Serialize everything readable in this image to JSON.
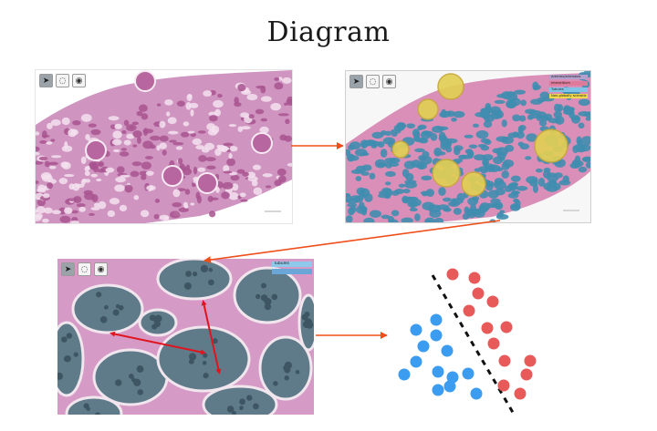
{
  "title": "Diagram",
  "panel_wsi": {
    "tools": [
      {
        "icon": "arrow-pointer-icon",
        "glyph": "➤"
      },
      {
        "icon": "lasso-icon",
        "glyph": "◌"
      },
      {
        "icon": "focus-icon",
        "glyph": "◉"
      }
    ]
  },
  "panel_seg": {
    "tools": [
      {
        "icon": "arrow-pointer-icon",
        "glyph": "➤"
      },
      {
        "icon": "lasso-icon",
        "glyph": "◌"
      },
      {
        "icon": "focus-icon",
        "glyph": "◉"
      }
    ],
    "legend": [
      {
        "color": "#b4a0cc",
        "text": "Arteries/arterioles"
      },
      {
        "color": "#e07a9a",
        "text": "Interstitium"
      },
      {
        "color": "#7ec3e8",
        "text": "Tubules"
      },
      {
        "color": "#f0d84a",
        "text": "Non-globally sclerotic"
      }
    ]
  },
  "panel_zoom": {
    "tools": [
      {
        "icon": "arrow-pointer-icon",
        "glyph": "➤"
      },
      {
        "icon": "lasso-icon",
        "glyph": "◌"
      },
      {
        "icon": "focus-icon",
        "glyph": "◉"
      }
    ],
    "legend": [
      {
        "color": "#8ec8ea",
        "text": "Tubules"
      },
      {
        "color": "#6aa6d8",
        "text": ""
      }
    ]
  },
  "colors": {
    "arrow": "#f04e1a",
    "pink_tissue": "#d7a0c8",
    "tubule_blue": "#3f8db0",
    "glomerulus_yellow": "#e2cf55",
    "measure_red": "#e0141e",
    "class_blue": "#3c9cf0",
    "class_red": "#e85a5a",
    "boundary": "#111111"
  },
  "classifier": {
    "blue_count": 12,
    "red_count": 13
  }
}
